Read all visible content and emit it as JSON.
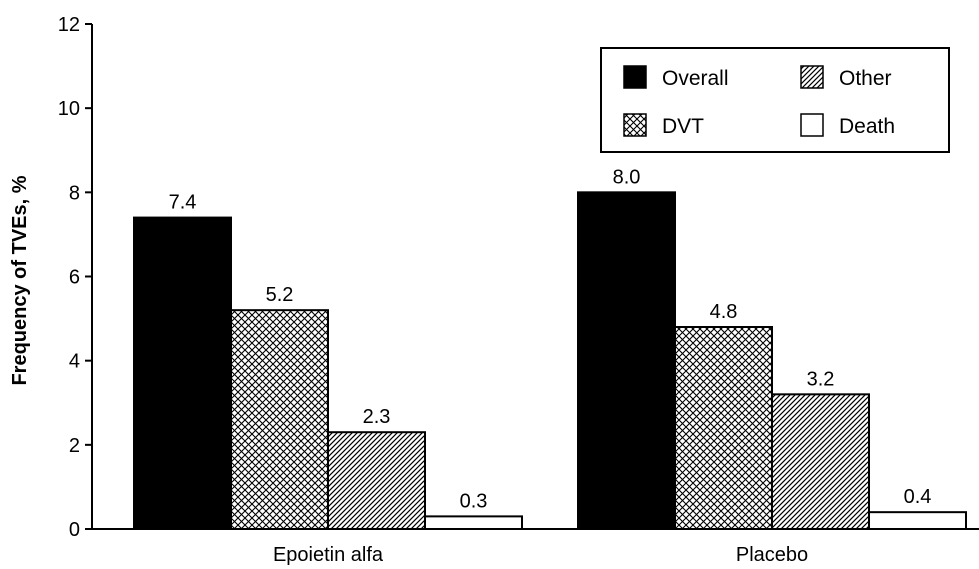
{
  "chart_data": {
    "type": "bar",
    "categories": [
      "Epoietin alfa",
      "Placebo"
    ],
    "series": [
      {
        "name": "Overall",
        "values": [
          7.4,
          8.0
        ],
        "labels": [
          "7.4",
          "8.0"
        ],
        "fill": "solid-black"
      },
      {
        "name": "DVT",
        "values": [
          5.2,
          4.8
        ],
        "labels": [
          "5.2",
          "4.8"
        ],
        "fill": "crosshatch"
      },
      {
        "name": "Other",
        "values": [
          2.3,
          3.2
        ],
        "labels": [
          "2.3",
          "3.2"
        ],
        "fill": "diagonal-hatch"
      },
      {
        "name": "Death",
        "values": [
          0.3,
          0.4
        ],
        "labels": [
          "0.3",
          "0.4"
        ],
        "fill": "white"
      }
    ],
    "ylabel": "Frequency of TVEs, %",
    "xlabel": "",
    "ylim": [
      0,
      12
    ],
    "yticks": [
      0,
      2,
      4,
      6,
      8,
      10,
      12
    ],
    "grid": false,
    "legend": {
      "placement": "top-right",
      "order": [
        "Overall",
        "Other",
        "DVT",
        "Death"
      ]
    }
  }
}
